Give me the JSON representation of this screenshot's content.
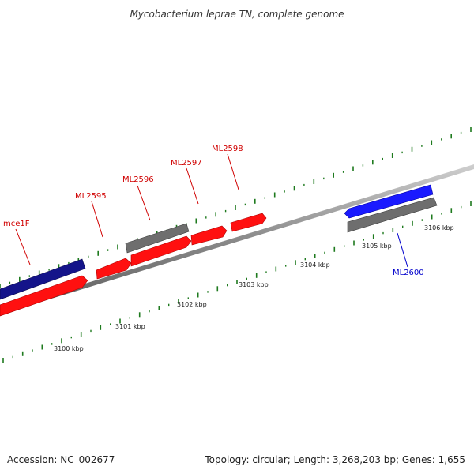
{
  "title": "Mycobacterium leprae TN, complete genome",
  "colors": {
    "backbone": "#8a8a8a",
    "gene_red": "#ff1010",
    "gene_blue": "#1a1aff",
    "gene_navy": "#14148a",
    "gene_gray": "#6e6e6e",
    "tick": "#1e7a1e",
    "label_red": "#d00000",
    "label_blue": "#0000cc"
  },
  "genes": [
    {
      "name": "mce1F",
      "color": "navy",
      "label": "red"
    },
    {
      "name": "",
      "color": "red",
      "label": "none"
    },
    {
      "name": "ML2595",
      "color": "red",
      "label": "red"
    },
    {
      "name": "ML2596",
      "color": "gray",
      "label": "red"
    },
    {
      "name": "",
      "color": "red",
      "label": "none"
    },
    {
      "name": "ML2597",
      "color": "red",
      "label": "red"
    },
    {
      "name": "ML2598",
      "color": "red",
      "label": "red"
    },
    {
      "name": "",
      "color": "blue",
      "label": "none"
    },
    {
      "name": "ML2600",
      "color": "gray",
      "label": "blue"
    }
  ],
  "ticks": [
    "3100 kbp",
    "3101 kbp",
    "3102 kbp",
    "3103 kbp",
    "3104 kbp",
    "3105 kbp",
    "3106 kbp"
  ],
  "footer": {
    "accession": "Accession: NC_002677",
    "topology": "Topology: circular; Length: 3,268,203 bp; Genes: 1,655"
  }
}
